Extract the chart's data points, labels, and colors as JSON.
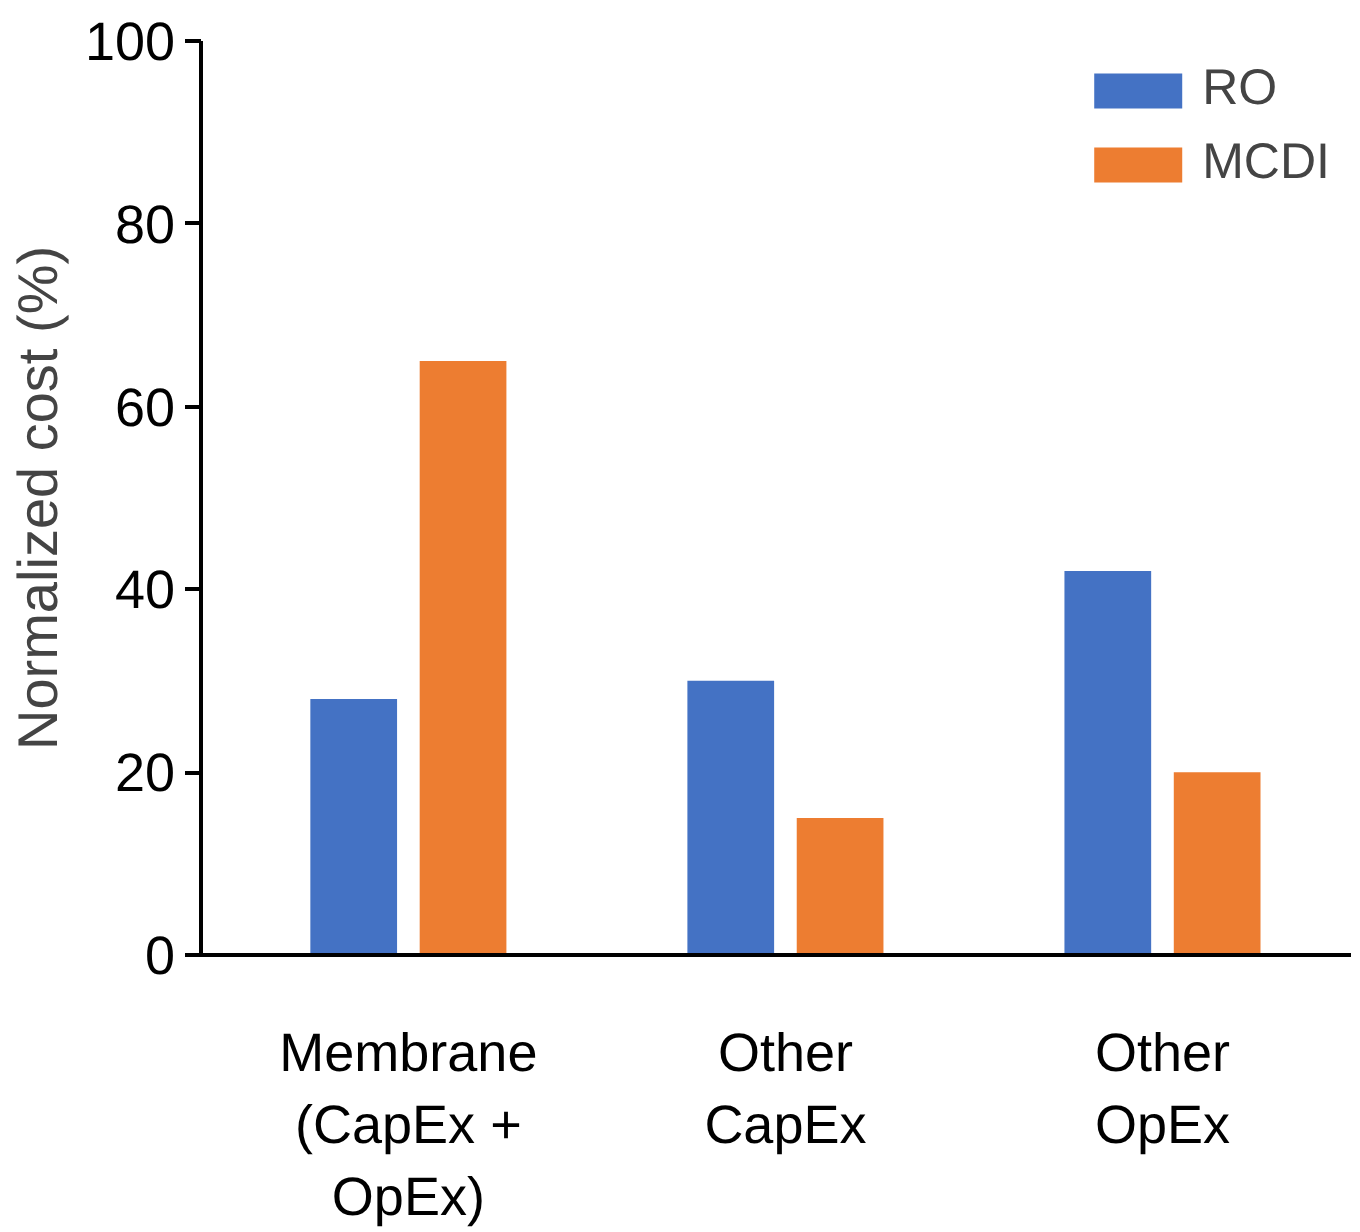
{
  "chart_data": {
    "type": "bar",
    "ylabel": "Normalized cost (%)",
    "categories": [
      "Membrane\n(CapEx +\nOpEx)",
      "Other\nCapEx",
      "Other\nOpEx"
    ],
    "series": [
      {
        "name": "RO",
        "color": "#4472c4",
        "values": [
          28,
          30,
          42
        ]
      },
      {
        "name": "MCDI",
        "color": "#ed7d31",
        "values": [
          65,
          15,
          20
        ]
      }
    ],
    "ylim": [
      0,
      100
    ],
    "yticks": [
      0,
      20,
      40,
      60,
      80,
      100
    ],
    "grid": false,
    "legend": "top right"
  }
}
